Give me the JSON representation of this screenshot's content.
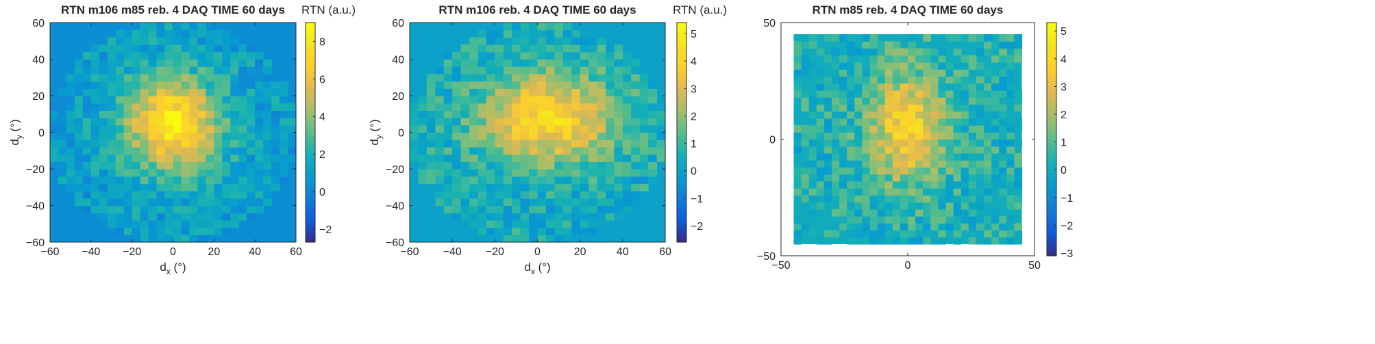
{
  "chart_data": [
    {
      "type": "heatmap",
      "title": "RTN m106 m85 reb. 4 DAQ TIME 60 days",
      "xlabel": "d",
      "xlabel_sub": "x",
      "xlabel_unit": " (°)",
      "ylabel": "d",
      "ylabel_sub": "y",
      "ylabel_unit": " (°)",
      "colorbar_label": "RTN (a.u.)",
      "xlim": [
        -60,
        60
      ],
      "ylim": [
        -60,
        60
      ],
      "xticks": [
        -60,
        -40,
        -20,
        0,
        20,
        40,
        60
      ],
      "yticks": [
        -60,
        -40,
        -20,
        0,
        20,
        40,
        60
      ],
      "clim": [
        -2.7,
        9.0
      ],
      "cticks": [
        -2,
        0,
        2,
        4,
        6,
        8
      ],
      "colormap": "parula",
      "background_value": 0.3,
      "grid": {
        "nx": 30,
        "ny": 30,
        "x0": -60,
        "dx": 4,
        "y0": -60,
        "dy": 4,
        "mask_radius": 60
      },
      "hotspot": {
        "x": 0,
        "y": 5,
        "sx": 16,
        "sy": 18,
        "amp": 7.0,
        "base": 1.0,
        "noise": 1.2,
        "seed": 11
      }
    },
    {
      "type": "heatmap",
      "title": "RTN m106 reb. 4 DAQ TIME 60 days",
      "xlabel": "d",
      "xlabel_sub": "x",
      "xlabel_unit": " (°)",
      "ylabel": "d",
      "ylabel_sub": "y",
      "ylabel_unit": " (°)",
      "colorbar_label": "RTN (a.u.)",
      "xlim": [
        -60,
        60
      ],
      "ylim": [
        -60,
        60
      ],
      "xticks": [
        -60,
        -40,
        -20,
        0,
        20,
        40,
        60
      ],
      "yticks": [
        -60,
        -40,
        -20,
        0,
        20,
        40,
        60
      ],
      "clim": [
        -2.6,
        5.4
      ],
      "cticks": [
        -2,
        -1,
        0,
        1,
        2,
        3,
        4,
        5
      ],
      "colormap": "parula",
      "background_value": 0.0,
      "grid": {
        "nx": 30,
        "ny": 30,
        "x0": -60,
        "dx": 4,
        "y0": -60,
        "dy": 4,
        "mask_radius": 60
      },
      "hotspot": {
        "x": 5,
        "y": 8,
        "sx": 22,
        "sy": 17,
        "amp": 3.8,
        "base": 0.4,
        "noise": 0.9,
        "seed": 23
      }
    },
    {
      "type": "heatmap",
      "title": "RTN m85 reb. 4 DAQ TIME 60 days",
      "xlabel": "",
      "ylabel": "",
      "colorbar_label": "",
      "xlim": [
        -50,
        50
      ],
      "ylim": [
        -50,
        50
      ],
      "xticks": [
        -50,
        0,
        50
      ],
      "yticks": [
        -50,
        0,
        50
      ],
      "clim": [
        -3.1,
        5.3
      ],
      "cticks": [
        -3,
        -2,
        -1,
        0,
        1,
        2,
        3,
        4,
        5
      ],
      "colormap": "parula",
      "background_value": 0.0,
      "grid": {
        "nx": 30,
        "ny": 30,
        "x0": -45,
        "dx": 3,
        "y0": -45,
        "dy": 3,
        "mask_radius": 0
      },
      "hotspot": {
        "x": 0,
        "y": 5,
        "sx": 10,
        "sy": 16,
        "amp": 3.5,
        "base": 0.3,
        "noise": 1.0,
        "seed": 37
      }
    }
  ]
}
